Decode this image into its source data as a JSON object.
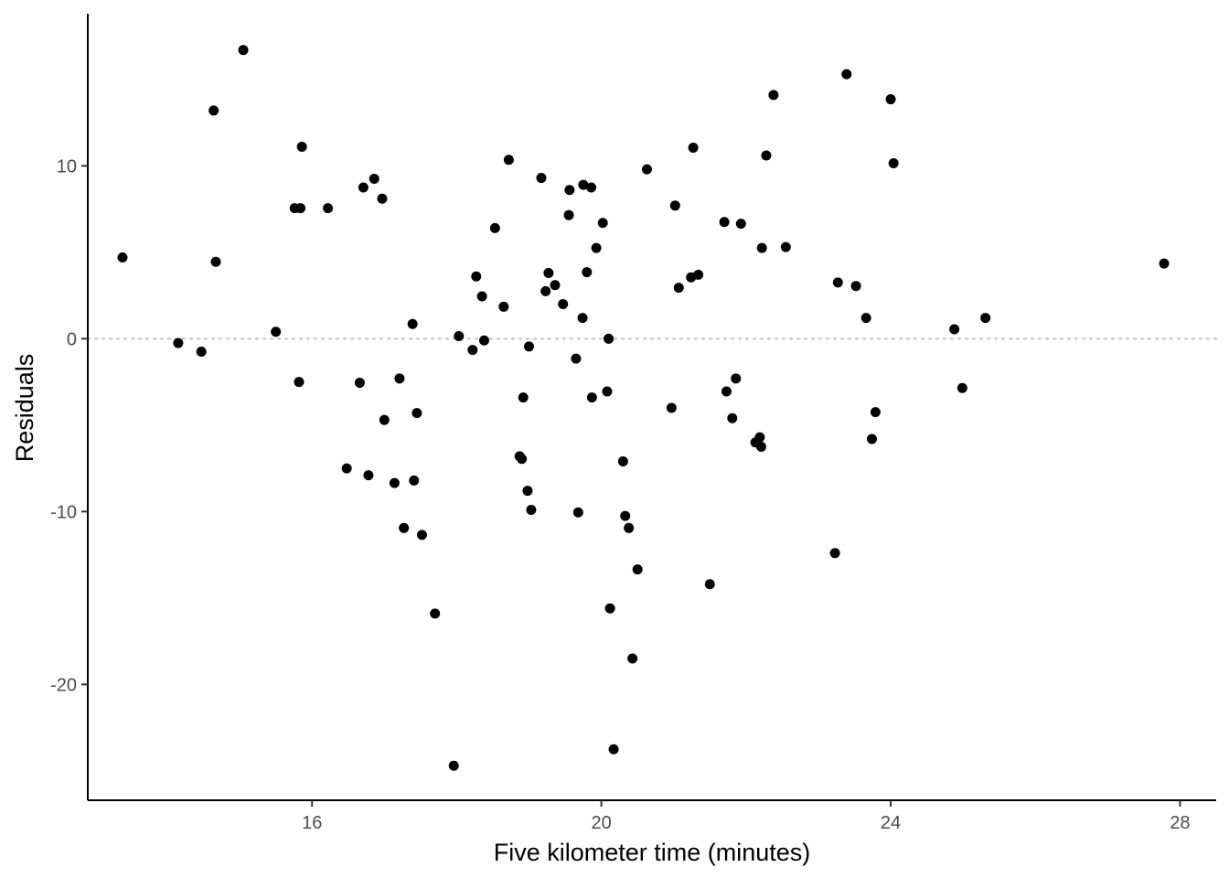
{
  "chart_data": {
    "type": "scatter",
    "title": "",
    "xlabel": "Five kilometer time (minutes)",
    "ylabel": "Residuals",
    "xlim": [
      12.9,
      28.5
    ],
    "ylim": [
      -26.7,
      18.8
    ],
    "x_ticks": [
      16,
      20,
      24,
      28
    ],
    "y_ticks": [
      -20,
      -10,
      0,
      10
    ],
    "x_tick_labels": [
      "16",
      "20",
      "24",
      "28"
    ],
    "y_tick_labels": [
      "-20",
      "-10",
      "0",
      "10"
    ],
    "grid": false,
    "legend": "none",
    "reference_line": {
      "y": 0,
      "style": "dotted",
      "color": "#bdbdbd"
    },
    "point_color": "#000000",
    "axis_color": "#000000",
    "points": [
      {
        "x": 13.38,
        "y": 4.7
      },
      {
        "x": 14.15,
        "y": -0.25
      },
      {
        "x": 14.47,
        "y": -0.75
      },
      {
        "x": 14.64,
        "y": 13.2
      },
      {
        "x": 14.67,
        "y": 4.45
      },
      {
        "x": 15.05,
        "y": 16.7
      },
      {
        "x": 15.5,
        "y": 0.4
      },
      {
        "x": 15.76,
        "y": 7.55
      },
      {
        "x": 15.84,
        "y": 7.55
      },
      {
        "x": 15.82,
        "y": -2.5
      },
      {
        "x": 15.86,
        "y": 11.1
      },
      {
        "x": 16.22,
        "y": 7.55
      },
      {
        "x": 16.48,
        "y": -7.5
      },
      {
        "x": 16.66,
        "y": -2.55
      },
      {
        "x": 16.71,
        "y": 8.75
      },
      {
        "x": 16.78,
        "y": -7.9
      },
      {
        "x": 16.86,
        "y": 9.25
      },
      {
        "x": 16.97,
        "y": 8.1
      },
      {
        "x": 17.0,
        "y": -4.7
      },
      {
        "x": 17.14,
        "y": -8.35
      },
      {
        "x": 17.21,
        "y": -2.3
      },
      {
        "x": 17.27,
        "y": -10.95
      },
      {
        "x": 17.39,
        "y": 0.85
      },
      {
        "x": 17.41,
        "y": -8.2
      },
      {
        "x": 17.45,
        "y": -4.3
      },
      {
        "x": 17.52,
        "y": -11.35
      },
      {
        "x": 17.7,
        "y": -15.9
      },
      {
        "x": 17.96,
        "y": -24.7
      },
      {
        "x": 18.03,
        "y": 0.15
      },
      {
        "x": 18.22,
        "y": -0.65
      },
      {
        "x": 18.27,
        "y": 3.6
      },
      {
        "x": 18.35,
        "y": 2.45
      },
      {
        "x": 18.38,
        "y": -0.1
      },
      {
        "x": 18.53,
        "y": 6.4
      },
      {
        "x": 18.65,
        "y": 1.85
      },
      {
        "x": 18.72,
        "y": 10.35
      },
      {
        "x": 18.87,
        "y": -6.8
      },
      {
        "x": 18.9,
        "y": -6.95
      },
      {
        "x": 18.92,
        "y": -3.4
      },
      {
        "x": 18.98,
        "y": -8.8
      },
      {
        "x": 19.0,
        "y": -0.45
      },
      {
        "x": 19.03,
        "y": -9.9
      },
      {
        "x": 19.17,
        "y": 9.3
      },
      {
        "x": 19.23,
        "y": 2.75
      },
      {
        "x": 19.27,
        "y": 3.8
      },
      {
        "x": 19.36,
        "y": 3.1
      },
      {
        "x": 19.47,
        "y": 2.0
      },
      {
        "x": 19.55,
        "y": 7.15
      },
      {
        "x": 19.56,
        "y": 8.6
      },
      {
        "x": 19.65,
        "y": -1.15
      },
      {
        "x": 19.68,
        "y": -10.05
      },
      {
        "x": 19.74,
        "y": 1.2
      },
      {
        "x": 19.75,
        "y": 8.9
      },
      {
        "x": 19.8,
        "y": 3.85
      },
      {
        "x": 19.86,
        "y": 8.75
      },
      {
        "x": 19.87,
        "y": -3.4
      },
      {
        "x": 19.93,
        "y": 5.25
      },
      {
        "x": 20.02,
        "y": 6.7
      },
      {
        "x": 20.08,
        "y": -3.05
      },
      {
        "x": 20.1,
        "y": 0.0
      },
      {
        "x": 20.12,
        "y": -15.6
      },
      {
        "x": 20.17,
        "y": -23.75
      },
      {
        "x": 20.3,
        "y": -7.1
      },
      {
        "x": 20.33,
        "y": -10.25
      },
      {
        "x": 20.38,
        "y": -10.95
      },
      {
        "x": 20.43,
        "y": -18.5
      },
      {
        "x": 20.5,
        "y": -13.35
      },
      {
        "x": 20.63,
        "y": 9.8
      },
      {
        "x": 20.97,
        "y": -4.0
      },
      {
        "x": 21.02,
        "y": 7.7
      },
      {
        "x": 21.07,
        "y": 2.95
      },
      {
        "x": 21.24,
        "y": 3.55
      },
      {
        "x": 21.27,
        "y": 11.05
      },
      {
        "x": 21.34,
        "y": 3.7
      },
      {
        "x": 21.5,
        "y": -14.2
      },
      {
        "x": 21.7,
        "y": 6.75
      },
      {
        "x": 21.73,
        "y": -3.05
      },
      {
        "x": 21.81,
        "y": -4.6
      },
      {
        "x": 21.86,
        "y": -2.3
      },
      {
        "x": 21.93,
        "y": 6.65
      },
      {
        "x": 22.13,
        "y": -6.0
      },
      {
        "x": 22.19,
        "y": -5.7
      },
      {
        "x": 22.21,
        "y": -6.25
      },
      {
        "x": 22.22,
        "y": 5.25
      },
      {
        "x": 22.28,
        "y": 10.6
      },
      {
        "x": 22.38,
        "y": 14.1
      },
      {
        "x": 22.55,
        "y": 5.3
      },
      {
        "x": 23.23,
        "y": -12.4
      },
      {
        "x": 23.27,
        "y": 3.25
      },
      {
        "x": 23.39,
        "y": 15.3
      },
      {
        "x": 23.52,
        "y": 3.05
      },
      {
        "x": 23.66,
        "y": 1.2
      },
      {
        "x": 23.74,
        "y": -5.8
      },
      {
        "x": 23.79,
        "y": -4.25
      },
      {
        "x": 24.0,
        "y": 13.85
      },
      {
        "x": 24.04,
        "y": 10.15
      },
      {
        "x": 24.88,
        "y": 0.55
      },
      {
        "x": 24.99,
        "y": -2.85
      },
      {
        "x": 25.31,
        "y": 1.2
      },
      {
        "x": 27.78,
        "y": 4.35
      }
    ]
  }
}
